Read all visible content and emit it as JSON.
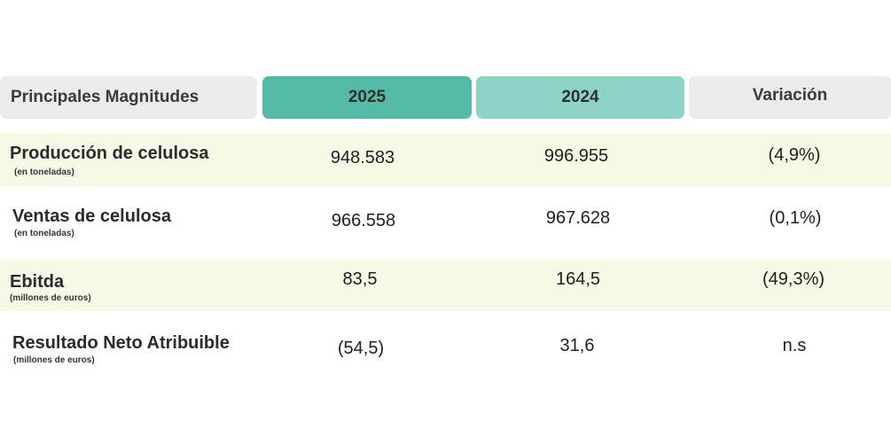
{
  "header": {
    "label": "Principales Magnitudes",
    "col_2025": "2025",
    "col_2024": "2024",
    "col_variation": "Variación"
  },
  "colors": {
    "header_2025": "#53bba6",
    "header_2024": "#8dd4c7",
    "header_gray": "#ebebeb",
    "row_shade": "#f7f9e6"
  },
  "rows": [
    {
      "label": "Producción de celulosa",
      "unit": "(en toneladas)",
      "v2025": "948.583",
      "v2024": "996.955",
      "variation": "(4,9%)"
    },
    {
      "label": "Ventas de celulosa",
      "unit": "(en toneladas)",
      "v2025": "966.558",
      "v2024": "967.628",
      "variation": "(0,1%)"
    },
    {
      "label": "Ebitda",
      "unit": "(millones de euros)",
      "v2025": "83,5",
      "v2024": "164,5",
      "variation": "(49,3%)"
    },
    {
      "label": "Resultado Neto Atribuible",
      "unit": "(millones de euros)",
      "v2025": "(54,5)",
      "v2024": "31,6",
      "variation": "n.s"
    }
  ]
}
